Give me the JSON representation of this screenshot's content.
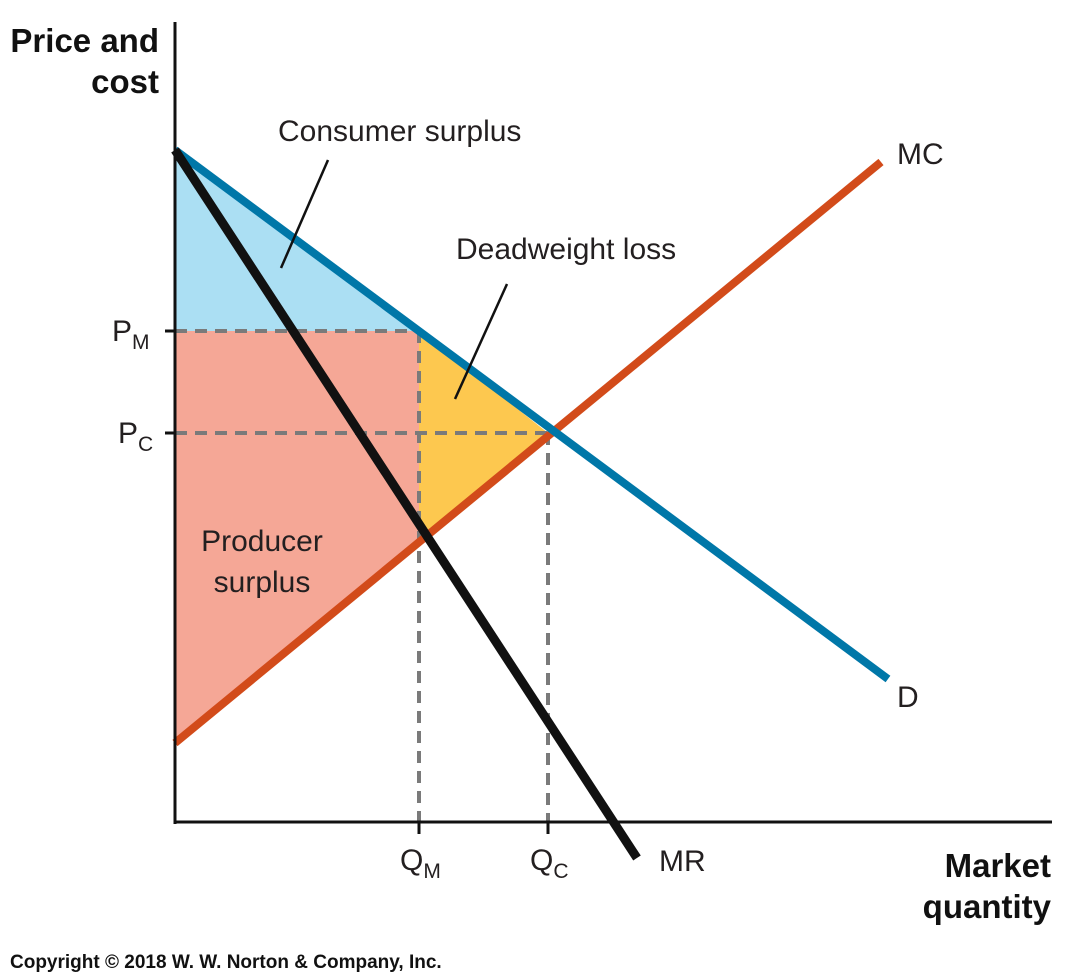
{
  "axes": {
    "y_title_line1": "Price and",
    "y_title_line2": "cost",
    "x_title_line1": "Market",
    "x_title_line2": "quantity"
  },
  "price_labels": {
    "pm_main": "P",
    "pm_sub": "M",
    "pc_main": "P",
    "pc_sub": "C"
  },
  "quantity_labels": {
    "qm_main": "Q",
    "qm_sub": "M",
    "qc_main": "Q",
    "qc_sub": "C"
  },
  "curves": {
    "mc": "MC",
    "demand": "D",
    "mr": "MR"
  },
  "regions": {
    "consumer_surplus": "Consumer surplus",
    "deadweight_loss": "Deadweight loss",
    "producer_surplus_line1": "Producer",
    "producer_surplus_line2": "surplus"
  },
  "copyright": "Copyright © 2018 W. W. Norton & Company, Inc.",
  "colors": {
    "demand": "#0077a8",
    "mc": "#d24b1a",
    "mr": "#111111",
    "consumer_surplus_fill": "#abdff3",
    "producer_surplus_fill": "#f5a796",
    "deadweight_loss_fill": "#fdc84f",
    "dashed": "#7a7a7a"
  }
}
